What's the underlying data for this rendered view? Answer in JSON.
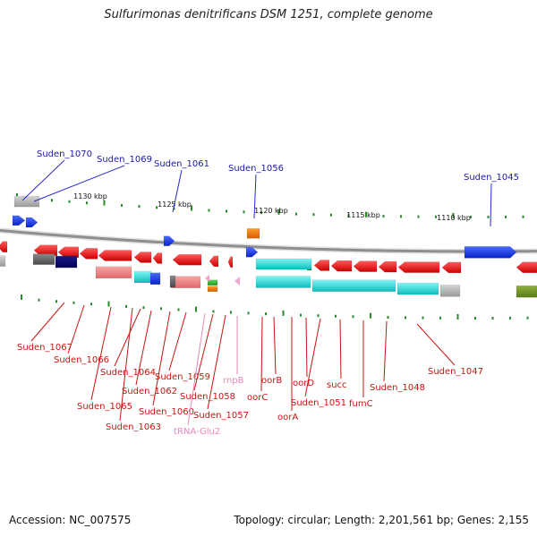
{
  "title": "Sulfurimonas denitrificans DSM 1251, complete genome",
  "accession": "Accession: NC_007575",
  "summary": "Topology: circular; Length: 2,201,561 bp; Genes: 2,155",
  "colors": {
    "backbone": "#8f8f8f",
    "gene_red": "#ee1111",
    "gene_blue": "#1133ee",
    "gene_cyan": "#11d6d6",
    "label_blue": "#1a1aa6",
    "label_red": "#c8140f",
    "label_pink": "#e889b9",
    "tick_green": "#2a8a2a"
  },
  "scale_labels": [
    "1130 kbp",
    "1125 kbp",
    "1120 kbp",
    "1115 kbp",
    "1110 kbp"
  ],
  "top_genes": [
    "Suden_1070",
    "Suden_1069",
    "Suden_1061",
    "Suden_1056",
    "Suden_1045"
  ],
  "bottom_genes": [
    "Suden_1067",
    "Suden_1066",
    "Suden_1064",
    "Suden_1065",
    "Suden_1062",
    "Suden_1063",
    "Suden_1060",
    "Suden_1059",
    "tRNA-Glu2",
    "Suden_1058",
    "Suden_1057",
    "rnpB",
    "oorC",
    "oorB",
    "oorA",
    "oorD",
    "Suden_1051",
    "succ",
    "fumC",
    "Suden_1048",
    "Suden_1047"
  ]
}
